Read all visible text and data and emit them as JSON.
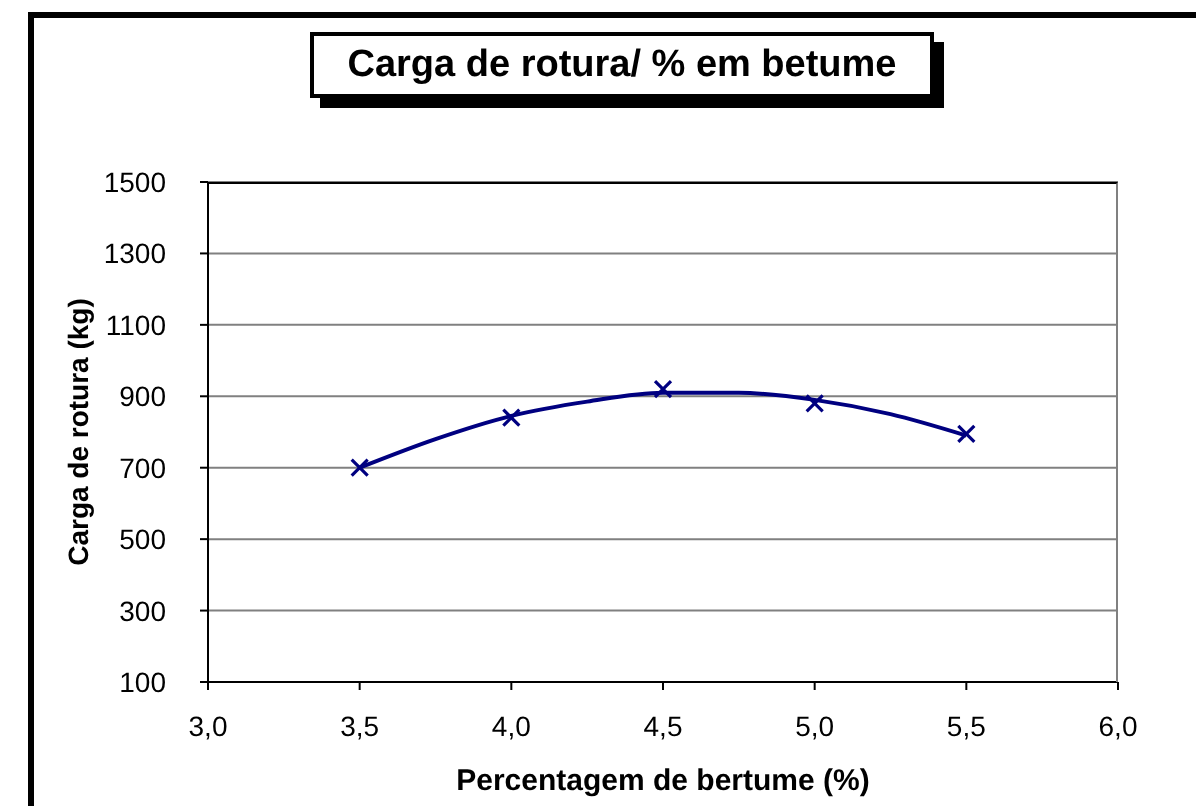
{
  "chart_data": {
    "type": "scatter",
    "title": "Carga de rotura/ % em betume",
    "xlabel": "Percentagem de bertume (%)",
    "ylabel": "Carga de rotura (kg)",
    "xlim": [
      3,
      6
    ],
    "xticks": [
      {
        "value": 3,
        "label": "3,0"
      },
      {
        "value": 3.5,
        "label": "3,5"
      },
      {
        "value": 4,
        "label": "4,0"
      },
      {
        "value": 4.5,
        "label": "4,5"
      },
      {
        "value": 5,
        "label": "5,0"
      },
      {
        "value": 5.5,
        "label": "5,5"
      },
      {
        "value": 6,
        "label": "6,0"
      }
    ],
    "ylim": [
      100,
      1500
    ],
    "yticks": [
      100,
      300,
      500,
      700,
      900,
      1100,
      1300,
      1500
    ],
    "grid": "y",
    "series": [
      {
        "type": "line",
        "color": "#000080",
        "marker": "none",
        "line_style": "solid",
        "x": [
          3.5,
          3.75,
          4,
          4.25,
          4.5,
          4.75,
          5,
          5.25,
          5.5
        ],
        "values": [
          700,
          780,
          845,
          885,
          910,
          910,
          890,
          850,
          790
        ]
      },
      {
        "color": "#000080",
        "marker": "cross",
        "x": [
          3.5,
          4,
          4.5,
          5,
          5.5
        ],
        "values": [
          700,
          840,
          920,
          880,
          795
        ]
      }
    ]
  }
}
